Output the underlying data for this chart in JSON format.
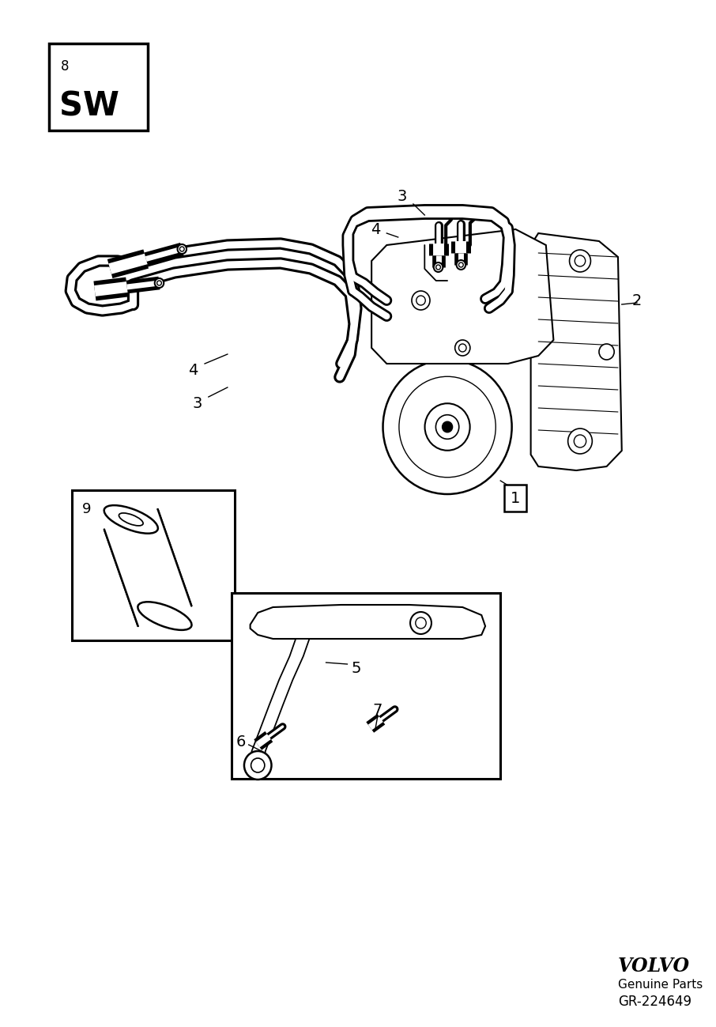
{
  "bg_color": "#ffffff",
  "fig_width": 9.06,
  "fig_height": 12.99,
  "dpi": 100,
  "sw_num": "8",
  "sw_text": "SW",
  "volvo_text": "VOLVO",
  "genuine_parts": "Genuine Parts",
  "part_number": "GR-224649"
}
